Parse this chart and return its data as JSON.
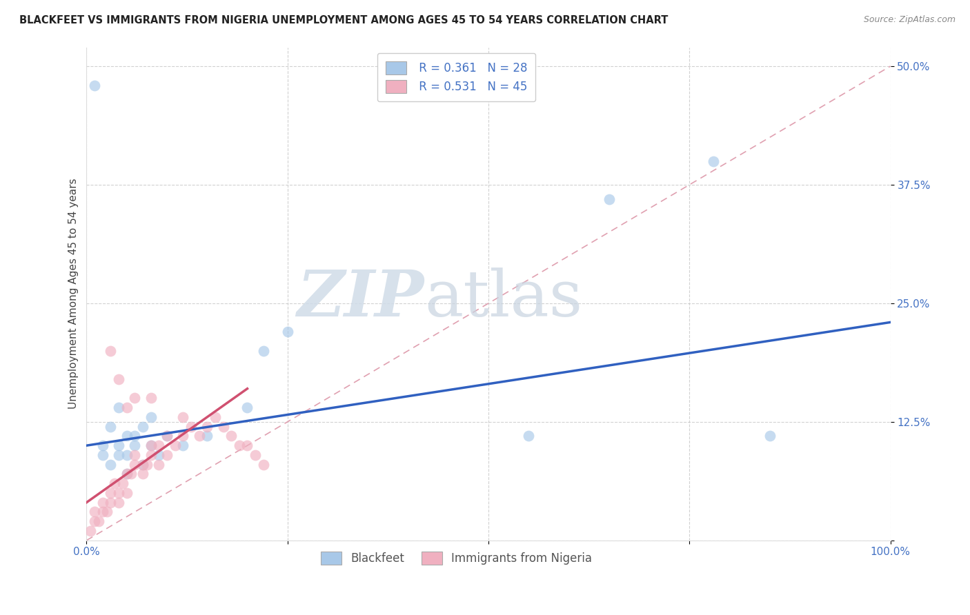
{
  "title": "BLACKFEET VS IMMIGRANTS FROM NIGERIA UNEMPLOYMENT AMONG AGES 45 TO 54 YEARS CORRELATION CHART",
  "source": "Source: ZipAtlas.com",
  "ylabel": "Unemployment Among Ages 45 to 54 years",
  "legend_label1": "Blackfeet",
  "legend_label2": "Immigrants from Nigeria",
  "R1": 0.361,
  "N1": 28,
  "R2": 0.531,
  "N2": 45,
  "color1": "#a8c8e8",
  "color2": "#f0b0c0",
  "line_color1": "#3060c0",
  "line_color2": "#d05070",
  "ref_line_color": "#e0a0b0",
  "xlim": [
    0,
    100
  ],
  "ylim": [
    0,
    52
  ],
  "ytick_vals": [
    0,
    12.5,
    25,
    37.5,
    50
  ],
  "ytick_labels": [
    "",
    "12.5%",
    "25.0%",
    "37.5%",
    "50.0%"
  ],
  "xtick_vals": [
    0,
    25,
    50,
    75,
    100
  ],
  "xtick_labels": [
    "0.0%",
    "",
    "",
    "",
    "100.0%"
  ],
  "watermark_zip": "ZIP",
  "watermark_atlas": "atlas",
  "blackfeet_x": [
    1,
    2,
    2,
    3,
    3,
    4,
    4,
    4,
    5,
    5,
    5,
    6,
    6,
    7,
    7,
    8,
    8,
    9,
    10,
    12,
    15,
    20,
    22,
    25,
    55,
    65,
    78,
    85
  ],
  "blackfeet_y": [
    48,
    10,
    9,
    12,
    8,
    10,
    14,
    9,
    11,
    7,
    9,
    10,
    11,
    12,
    8,
    10,
    13,
    9,
    11,
    10,
    11,
    14,
    20,
    22,
    11,
    36,
    40,
    11
  ],
  "nigeria_x": [
    0.5,
    1,
    1,
    1.5,
    2,
    2,
    2.5,
    3,
    3,
    3.5,
    4,
    4,
    4.5,
    5,
    5,
    5.5,
    6,
    6,
    7,
    7,
    7.5,
    8,
    8,
    9,
    9,
    10,
    10,
    11,
    12,
    12,
    13,
    14,
    15,
    16,
    17,
    18,
    19,
    20,
    21,
    22,
    3,
    4,
    5,
    6,
    8
  ],
  "nigeria_y": [
    1,
    2,
    3,
    2,
    3,
    4,
    3,
    4,
    5,
    6,
    4,
    5,
    6,
    5,
    7,
    7,
    8,
    9,
    7,
    8,
    8,
    9,
    10,
    8,
    10,
    9,
    11,
    10,
    11,
    13,
    12,
    11,
    12,
    13,
    12,
    11,
    10,
    10,
    9,
    8,
    20,
    17,
    14,
    15,
    15
  ],
  "blue_line_x0": 0,
  "blue_line_y0": 10.0,
  "blue_line_x1": 100,
  "blue_line_y1": 23.0,
  "pink_line_x0": 0,
  "pink_line_y0": 4.0,
  "pink_line_x1": 20,
  "pink_line_y1": 16.0
}
